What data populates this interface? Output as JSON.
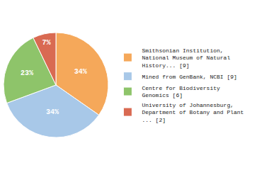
{
  "chart_data": {
    "type": "pie",
    "categories": [
      "Smithsonian Institution,\nNational Museum of Natural\nHistory... [9]",
      "Mined from GenBank, NCBI [9]",
      "Centre for Biodiversity\nGenomics [6]",
      "University of Johannesburg,\nDepartment of Botany and Plant\n... [2]"
    ],
    "values": [
      34,
      34,
      23,
      7
    ],
    "value_labels": [
      "34%",
      "34%",
      "23%",
      "7%"
    ],
    "colors": [
      "#f5a85a",
      "#a8c8e8",
      "#8ec46a",
      "#d96a52"
    ],
    "data_labels": true,
    "legend": "right"
  }
}
